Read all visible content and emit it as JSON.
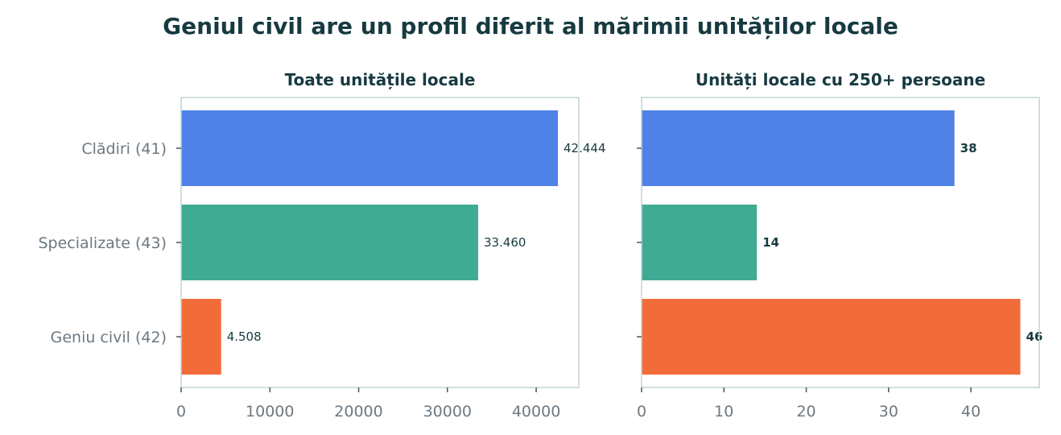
{
  "chart_data": {
    "title": "Geniul civil are un profil diferit al mărimii unităților locale",
    "categories": [
      "Clădiri (41)",
      "Specializate (43)",
      "Geniu civil (42)"
    ],
    "colors": [
      "#4f81e6",
      "#3fab93",
      "#f26c3a"
    ],
    "panels": [
      {
        "type": "bar",
        "orientation": "horizontal",
        "title": "Toate unitățile locale",
        "values": [
          42444,
          33460,
          4508
        ],
        "value_labels": [
          "42.444",
          "33.460",
          "4.508"
        ],
        "label_weight": "normal",
        "xlim": [
          0,
          44800
        ],
        "xticks": [
          0,
          10000,
          20000,
          30000,
          40000
        ],
        "xtick_labels": [
          "0",
          "10000",
          "20000",
          "30000",
          "40000"
        ],
        "show_category_labels": true
      },
      {
        "type": "bar",
        "orientation": "horizontal",
        "title": "Unități locale cu 250+ persoane",
        "values": [
          38,
          14,
          46
        ],
        "value_labels": [
          "38",
          "14",
          "46"
        ],
        "label_weight": "bold",
        "xlim": [
          0,
          48.3
        ],
        "xticks": [
          0,
          10,
          20,
          30,
          40
        ],
        "xtick_labels": [
          "0",
          "10",
          "20",
          "30",
          "40"
        ],
        "show_category_labels": false
      }
    ],
    "grid": false,
    "legend": "none"
  }
}
